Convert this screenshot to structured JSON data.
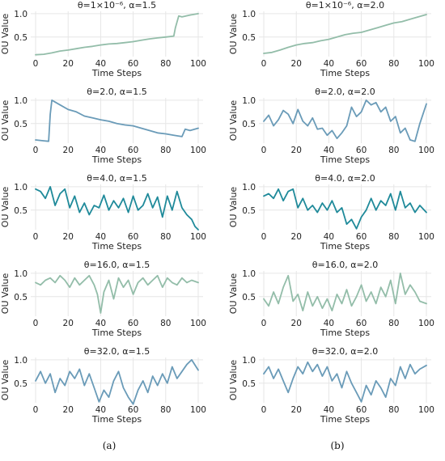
{
  "axis_labels": {
    "x": "Time Steps",
    "y": "OU Value"
  },
  "captions": {
    "a": "(a)",
    "b": "(b)"
  },
  "colors": {
    "teal_light": "#93bda9",
    "steel": "#6a9bb8",
    "teal_dark": "#1f8a9a",
    "grid": "#e6e6e6"
  },
  "chart_data": [
    {
      "type": "line",
      "column": "a",
      "row": 0,
      "title": "θ=1×10⁻⁶, α=1.5",
      "xlabel": "Time Steps",
      "ylabel": "OU Value",
      "xlim": [
        -3,
        103
      ],
      "ylim": [
        0.08,
        1.05
      ],
      "xticks": [
        0,
        20,
        40,
        60,
        80,
        100
      ],
      "yticks": [
        0.5,
        1.0
      ],
      "grid": true,
      "color": "#93bda9",
      "x": [
        0,
        5,
        10,
        15,
        20,
        25,
        30,
        35,
        40,
        45,
        50,
        55,
        60,
        65,
        70,
        75,
        80,
        85,
        86,
        88,
        90,
        95,
        100
      ],
      "y": [
        0.12,
        0.13,
        0.16,
        0.2,
        0.22,
        0.25,
        0.28,
        0.3,
        0.33,
        0.35,
        0.36,
        0.38,
        0.4,
        0.43,
        0.46,
        0.48,
        0.5,
        0.52,
        0.7,
        0.95,
        0.93,
        0.97,
        1.0
      ]
    },
    {
      "type": "line",
      "column": "b",
      "row": 0,
      "title": "θ=1×10⁻⁶, α=2.0",
      "xlabel": "Time Steps",
      "ylabel": "OU Value",
      "xlim": [
        -3,
        103
      ],
      "ylim": [
        0.08,
        1.05
      ],
      "xticks": [
        0,
        20,
        40,
        60,
        80,
        100
      ],
      "yticks": [
        0.5,
        1.0
      ],
      "grid": true,
      "color": "#93bda9",
      "x": [
        0,
        5,
        10,
        15,
        20,
        25,
        30,
        35,
        40,
        45,
        50,
        55,
        60,
        65,
        70,
        75,
        80,
        85,
        90,
        95,
        100
      ],
      "y": [
        0.15,
        0.17,
        0.22,
        0.28,
        0.33,
        0.36,
        0.38,
        0.42,
        0.45,
        0.5,
        0.55,
        0.58,
        0.6,
        0.65,
        0.7,
        0.75,
        0.8,
        0.83,
        0.88,
        0.93,
        0.98
      ]
    },
    {
      "type": "line",
      "column": "a",
      "row": 1,
      "title": "θ=2.0, α=1.5",
      "xlabel": "Time Steps",
      "ylabel": "OU Value",
      "xlim": [
        -3,
        103
      ],
      "ylim": [
        0.08,
        1.05
      ],
      "xticks": [
        0,
        20,
        40,
        60,
        80,
        100
      ],
      "yticks": [
        0.5,
        1.0
      ],
      "grid": true,
      "color": "#6a9bb8",
      "x": [
        0,
        5,
        8,
        9,
        10,
        12,
        15,
        20,
        25,
        30,
        35,
        40,
        45,
        50,
        55,
        60,
        65,
        70,
        75,
        80,
        85,
        90,
        92,
        95,
        100
      ],
      "y": [
        0.15,
        0.13,
        0.12,
        0.7,
        1.0,
        0.96,
        0.9,
        0.8,
        0.75,
        0.66,
        0.62,
        0.58,
        0.55,
        0.5,
        0.47,
        0.45,
        0.4,
        0.35,
        0.3,
        0.28,
        0.25,
        0.22,
        0.38,
        0.35,
        0.4
      ]
    },
    {
      "type": "line",
      "column": "b",
      "row": 1,
      "title": "θ=2.0, α=2.0",
      "xlabel": "Time Steps",
      "ylabel": "OU Value",
      "xlim": [
        -3,
        103
      ],
      "ylim": [
        0.08,
        1.05
      ],
      "xticks": [
        0,
        20,
        40,
        60,
        80,
        100
      ],
      "yticks": [
        0.5,
        1.0
      ],
      "grid": true,
      "color": "#6a9bb8",
      "x": [
        0,
        3,
        6,
        9,
        12,
        15,
        18,
        21,
        24,
        27,
        30,
        33,
        36,
        39,
        42,
        45,
        48,
        51,
        54,
        57,
        60,
        63,
        66,
        69,
        72,
        75,
        78,
        81,
        84,
        87,
        90,
        93,
        96,
        100
      ],
      "y": [
        0.55,
        0.68,
        0.45,
        0.58,
        0.78,
        0.7,
        0.5,
        0.8,
        0.55,
        0.45,
        0.62,
        0.38,
        0.4,
        0.25,
        0.35,
        0.18,
        0.3,
        0.45,
        0.85,
        0.65,
        0.75,
        1.0,
        0.9,
        0.95,
        0.75,
        0.85,
        0.55,
        0.65,
        0.3,
        0.4,
        0.15,
        0.12,
        0.5,
        0.92
      ]
    },
    {
      "type": "line",
      "column": "a",
      "row": 2,
      "title": "θ=4.0, α=1.5",
      "xlabel": "Time Steps",
      "ylabel": "OU Value",
      "xlim": [
        -3,
        103
      ],
      "ylim": [
        0.08,
        1.05
      ],
      "xticks": [
        0,
        20,
        40,
        60,
        80,
        100
      ],
      "yticks": [
        0.5,
        1.0
      ],
      "grid": true,
      "color": "#1f8a9a",
      "x": [
        0,
        3,
        6,
        9,
        12,
        15,
        18,
        21,
        24,
        27,
        30,
        33,
        36,
        39,
        42,
        45,
        48,
        51,
        54,
        57,
        60,
        63,
        66,
        69,
        72,
        75,
        78,
        81,
        84,
        87,
        90,
        93,
        96,
        98,
        100
      ],
      "y": [
        0.95,
        0.9,
        0.75,
        1.0,
        0.6,
        0.85,
        0.95,
        0.55,
        0.8,
        0.45,
        0.65,
        0.4,
        0.6,
        0.55,
        0.82,
        0.5,
        0.7,
        0.55,
        0.75,
        0.45,
        0.8,
        0.5,
        0.6,
        0.85,
        0.55,
        0.78,
        0.35,
        0.8,
        0.5,
        0.9,
        0.55,
        0.4,
        0.3,
        0.15,
        0.08
      ]
    },
    {
      "type": "line",
      "column": "b",
      "row": 2,
      "title": "θ=4.0, α=2.0",
      "xlabel": "Time Steps",
      "ylabel": "OU Value",
      "xlim": [
        -3,
        103
      ],
      "ylim": [
        0.08,
        1.05
      ],
      "xticks": [
        0,
        20,
        40,
        60,
        80,
        100
      ],
      "yticks": [
        0.5,
        1.0
      ],
      "grid": true,
      "color": "#1f8a9a",
      "x": [
        0,
        3,
        6,
        9,
        12,
        15,
        18,
        21,
        24,
        27,
        30,
        33,
        36,
        39,
        42,
        45,
        48,
        51,
        54,
        57,
        60,
        63,
        66,
        69,
        72,
        75,
        78,
        81,
        84,
        87,
        90,
        93,
        96,
        100
      ],
      "y": [
        0.8,
        0.85,
        0.75,
        0.95,
        0.7,
        0.9,
        0.95,
        0.55,
        0.75,
        0.5,
        0.6,
        0.45,
        0.65,
        0.5,
        0.7,
        0.45,
        0.55,
        0.2,
        0.3,
        0.1,
        0.35,
        0.5,
        0.75,
        0.5,
        0.7,
        0.6,
        0.85,
        0.5,
        0.9,
        0.55,
        0.65,
        0.45,
        0.6,
        0.45
      ]
    },
    {
      "type": "line",
      "column": "a",
      "row": 3,
      "title": "θ=16.0, α=1.5",
      "xlabel": "Time Steps",
      "ylabel": "OU Value",
      "xlim": [
        -3,
        103
      ],
      "ylim": [
        0.08,
        1.05
      ],
      "xticks": [
        0,
        20,
        40,
        60,
        80,
        100
      ],
      "yticks": [
        0.5,
        1.0
      ],
      "grid": true,
      "color": "#93bda9",
      "x": [
        0,
        3,
        6,
        9,
        12,
        15,
        18,
        21,
        24,
        27,
        30,
        33,
        36,
        38,
        40,
        42,
        45,
        48,
        51,
        54,
        57,
        60,
        63,
        66,
        69,
        72,
        75,
        78,
        81,
        84,
        87,
        90,
        93,
        96,
        100
      ],
      "y": [
        0.8,
        0.75,
        0.85,
        0.9,
        0.8,
        0.95,
        0.85,
        0.7,
        0.9,
        0.75,
        0.85,
        0.95,
        0.75,
        0.55,
        0.15,
        0.6,
        0.85,
        0.45,
        0.9,
        0.7,
        0.85,
        0.55,
        0.8,
        0.9,
        0.75,
        0.85,
        0.95,
        0.7,
        0.9,
        0.8,
        0.75,
        0.9,
        0.8,
        0.85,
        0.8
      ]
    },
    {
      "type": "line",
      "column": "b",
      "row": 3,
      "title": "θ=16.0, α=2.0",
      "xlabel": "Time Steps",
      "ylabel": "OU Value",
      "xlim": [
        -3,
        103
      ],
      "ylim": [
        0.08,
        1.05
      ],
      "xticks": [
        0,
        20,
        40,
        60,
        80,
        100
      ],
      "yticks": [
        0.5,
        1.0
      ],
      "grid": true,
      "color": "#93bda9",
      "x": [
        0,
        3,
        6,
        9,
        12,
        15,
        18,
        21,
        24,
        27,
        30,
        33,
        36,
        39,
        42,
        45,
        48,
        51,
        54,
        57,
        60,
        63,
        66,
        69,
        72,
        75,
        78,
        81,
        84,
        87,
        90,
        93,
        96,
        100
      ],
      "y": [
        0.45,
        0.3,
        0.6,
        0.35,
        0.7,
        0.95,
        0.4,
        0.55,
        0.2,
        0.6,
        0.3,
        0.5,
        0.25,
        0.45,
        0.2,
        0.55,
        0.35,
        0.65,
        0.3,
        0.5,
        0.75,
        0.4,
        0.6,
        0.35,
        0.7,
        0.5,
        0.85,
        0.35,
        1.0,
        0.55,
        0.75,
        0.6,
        0.4,
        0.35
      ]
    },
    {
      "type": "line",
      "column": "a",
      "row": 4,
      "title": "θ=32.0, α=1.5",
      "xlabel": "Time Steps",
      "ylabel": "OU Value",
      "xlim": [
        -3,
        103
      ],
      "ylim": [
        0.08,
        1.05
      ],
      "xticks": [
        0,
        20,
        40,
        60,
        80,
        100
      ],
      "yticks": [
        0.5,
        1.0
      ],
      "grid": true,
      "color": "#6a9bb8",
      "x": [
        0,
        3,
        6,
        9,
        12,
        15,
        18,
        21,
        24,
        27,
        30,
        33,
        36,
        39,
        42,
        45,
        48,
        51,
        54,
        57,
        60,
        63,
        66,
        69,
        72,
        75,
        78,
        81,
        84,
        87,
        90,
        93,
        96,
        100
      ],
      "y": [
        0.55,
        0.75,
        0.5,
        0.7,
        0.3,
        0.6,
        0.45,
        0.75,
        0.6,
        0.8,
        0.45,
        0.7,
        0.4,
        0.1,
        0.35,
        0.2,
        0.55,
        0.75,
        0.4,
        0.2,
        0.05,
        0.35,
        0.55,
        0.3,
        0.65,
        0.45,
        0.7,
        0.5,
        0.85,
        0.6,
        0.75,
        0.9,
        1.0,
        0.78
      ]
    },
    {
      "type": "line",
      "column": "b",
      "row": 4,
      "title": "θ=32.0, α=2.0",
      "xlabel": "Time Steps",
      "ylabel": "OU Value",
      "xlim": [
        -3,
        103
      ],
      "ylim": [
        0.08,
        1.05
      ],
      "xticks": [
        0,
        20,
        40,
        60,
        80,
        100
      ],
      "yticks": [
        0.5,
        1.0
      ],
      "grid": true,
      "color": "#6a9bb8",
      "x": [
        0,
        3,
        6,
        9,
        12,
        15,
        18,
        21,
        24,
        27,
        30,
        33,
        36,
        39,
        42,
        45,
        48,
        51,
        54,
        57,
        60,
        63,
        66,
        69,
        72,
        75,
        78,
        81,
        84,
        87,
        90,
        93,
        96,
        100
      ],
      "y": [
        0.7,
        0.85,
        0.6,
        0.8,
        0.55,
        0.3,
        0.6,
        0.85,
        0.7,
        0.95,
        0.75,
        0.9,
        0.65,
        0.85,
        0.55,
        0.7,
        0.4,
        0.75,
        0.5,
        0.3,
        0.1,
        0.45,
        0.25,
        0.55,
        0.4,
        0.2,
        0.6,
        0.45,
        0.85,
        0.6,
        0.9,
        0.7,
        0.8,
        0.88
      ]
    }
  ]
}
